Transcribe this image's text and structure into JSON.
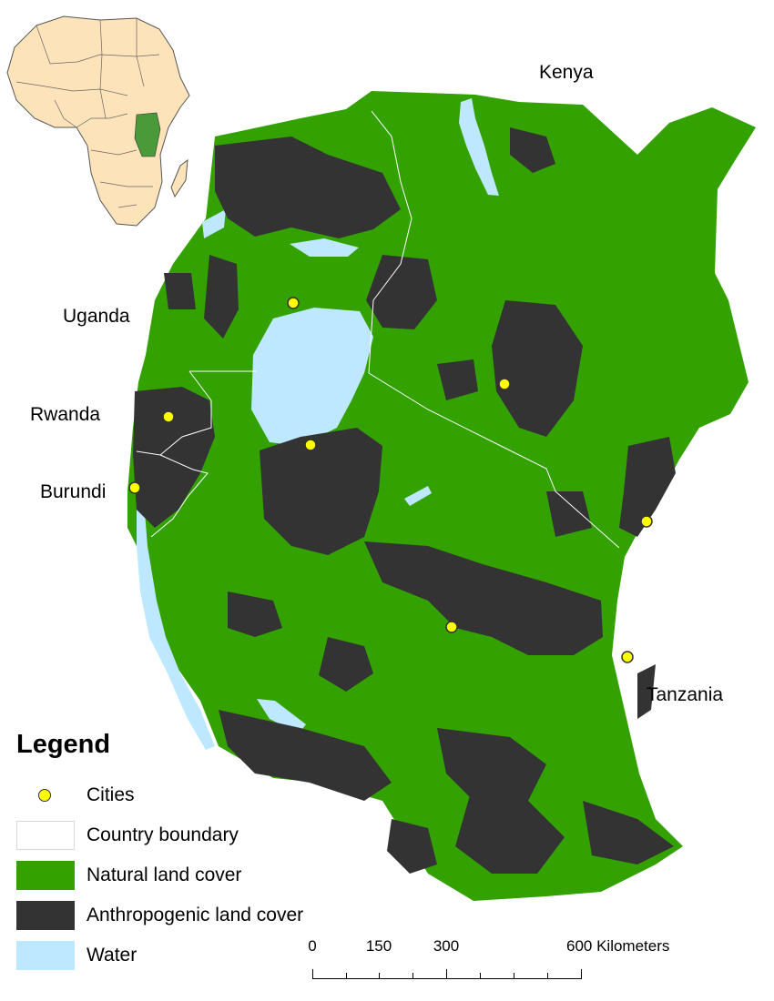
{
  "labels": {
    "kenya": "Kenya",
    "uganda": "Uganda",
    "rwanda": "Rwanda",
    "burundi": "Burundi",
    "tanzania": "Tanzania"
  },
  "legend": {
    "title": "Legend",
    "items": [
      {
        "key": "cities",
        "label": "Cities"
      },
      {
        "key": "boundary",
        "label": "Country boundary"
      },
      {
        "key": "natural",
        "label": "Natural land cover"
      },
      {
        "key": "anthro",
        "label": "Anthropogenic land cover"
      },
      {
        "key": "water",
        "label": "Water"
      }
    ]
  },
  "scalebar": {
    "ticks": [
      "0",
      "150",
      "300"
    ],
    "end_label": "600 Kilometers"
  },
  "colors": {
    "natural": "#33a100",
    "anthropogenic": "#333333",
    "water": "#bee8ff",
    "boundary": "#ffffff",
    "city_fill": "#ffff00",
    "inset_land": "#fde3b9",
    "inset_highlight": "#4a9a3a"
  }
}
